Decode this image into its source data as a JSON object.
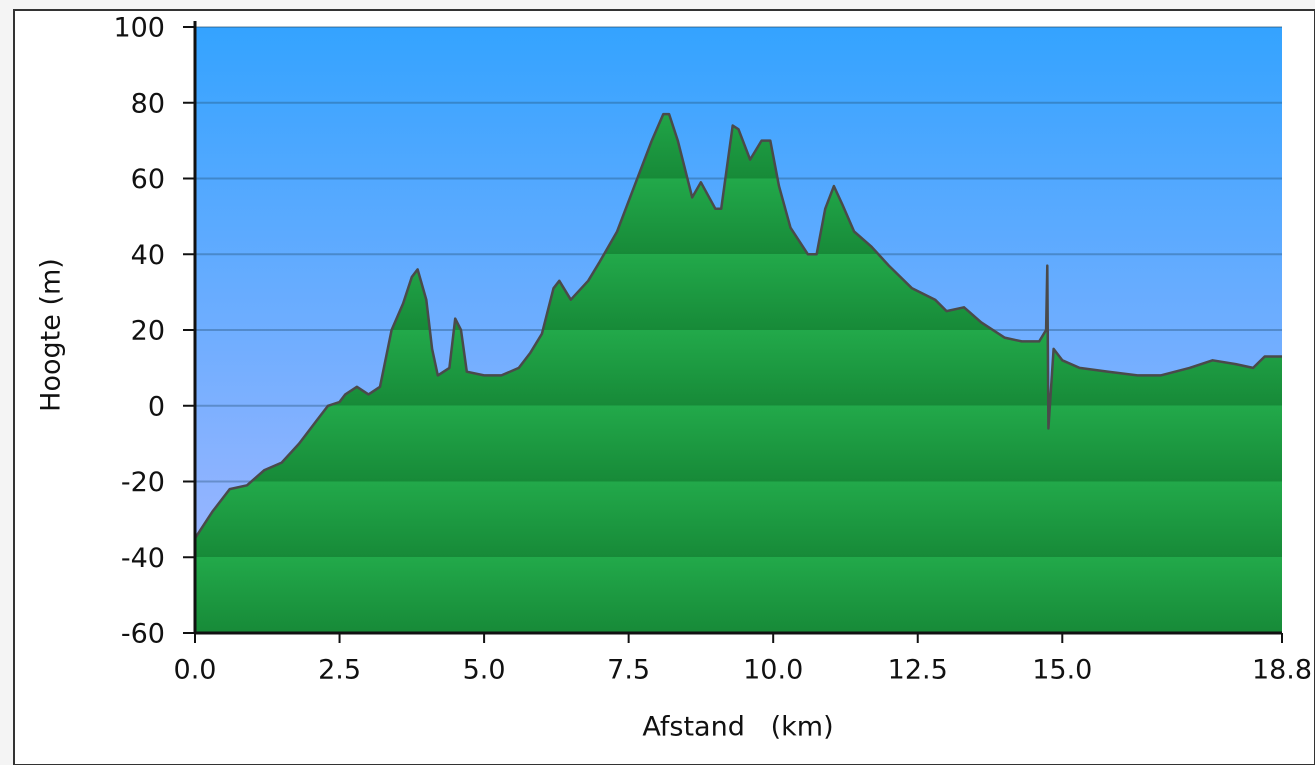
{
  "chart_data": {
    "type": "area",
    "x_label": "Afstand   (km)",
    "y_label": "Hoogte (m)",
    "x": [
      0,
      0.3,
      0.6,
      0.9,
      1.2,
      1.5,
      1.8,
      2.1,
      2.3,
      2.5,
      2.6,
      2.8,
      3.0,
      3.2,
      3.4,
      3.6,
      3.75,
      3.85,
      4.0,
      4.1,
      4.2,
      4.4,
      4.5,
      4.6,
      4.7,
      5.0,
      5.3,
      5.6,
      5.8,
      6.0,
      6.2,
      6.3,
      6.5,
      6.8,
      7.0,
      7.3,
      7.6,
      7.9,
      8.1,
      8.2,
      8.35,
      8.6,
      8.75,
      9.0,
      9.1,
      9.3,
      9.4,
      9.6,
      9.8,
      9.95,
      10.1,
      10.3,
      10.6,
      10.75,
      10.9,
      11.05,
      11.2,
      11.4,
      11.7,
      12.0,
      12.4,
      12.8,
      13.0,
      13.3,
      13.6,
      14.0,
      14.3,
      14.6,
      14.72,
      14.74,
      14.76,
      14.85,
      15.0,
      15.3,
      15.8,
      16.3,
      16.7,
      17.2,
      17.6,
      18.0,
      18.3,
      18.5,
      18.8
    ],
    "values": [
      -35,
      -28,
      -22,
      -21,
      -17,
      -15,
      -10,
      -4,
      0,
      1,
      3,
      5,
      3,
      5,
      20,
      27,
      34,
      36,
      28,
      15,
      8,
      10,
      23,
      20,
      9,
      8,
      8,
      10,
      14,
      19,
      31,
      33,
      28,
      33,
      38,
      46,
      58,
      70,
      77,
      77,
      70,
      55,
      59,
      52,
      52,
      74,
      73,
      65,
      70,
      70,
      58,
      47,
      40,
      40,
      52,
      58,
      53,
      46,
      42,
      37,
      31,
      28,
      25,
      26,
      22,
      18,
      17,
      17,
      20,
      37,
      -6,
      15,
      12,
      10,
      9,
      8,
      8,
      10,
      12,
      11,
      10,
      13,
      13
    ],
    "color": "#22a94a",
    "xlim": [
      0,
      18.8
    ],
    "ylim": [
      -60,
      100
    ],
    "xticks": [
      {
        "value": 0,
        "label": "0.0"
      },
      2.5,
      {
        "value": 5,
        "label": "5.0"
      },
      7.5,
      {
        "value": 10,
        "label": "10.0"
      },
      12.5,
      {
        "value": 15,
        "label": "15.0"
      },
      18.8
    ],
    "yticks": [
      -60,
      -40,
      -20,
      0,
      20,
      40,
      60,
      80,
      100
    ],
    "grid": true
  }
}
